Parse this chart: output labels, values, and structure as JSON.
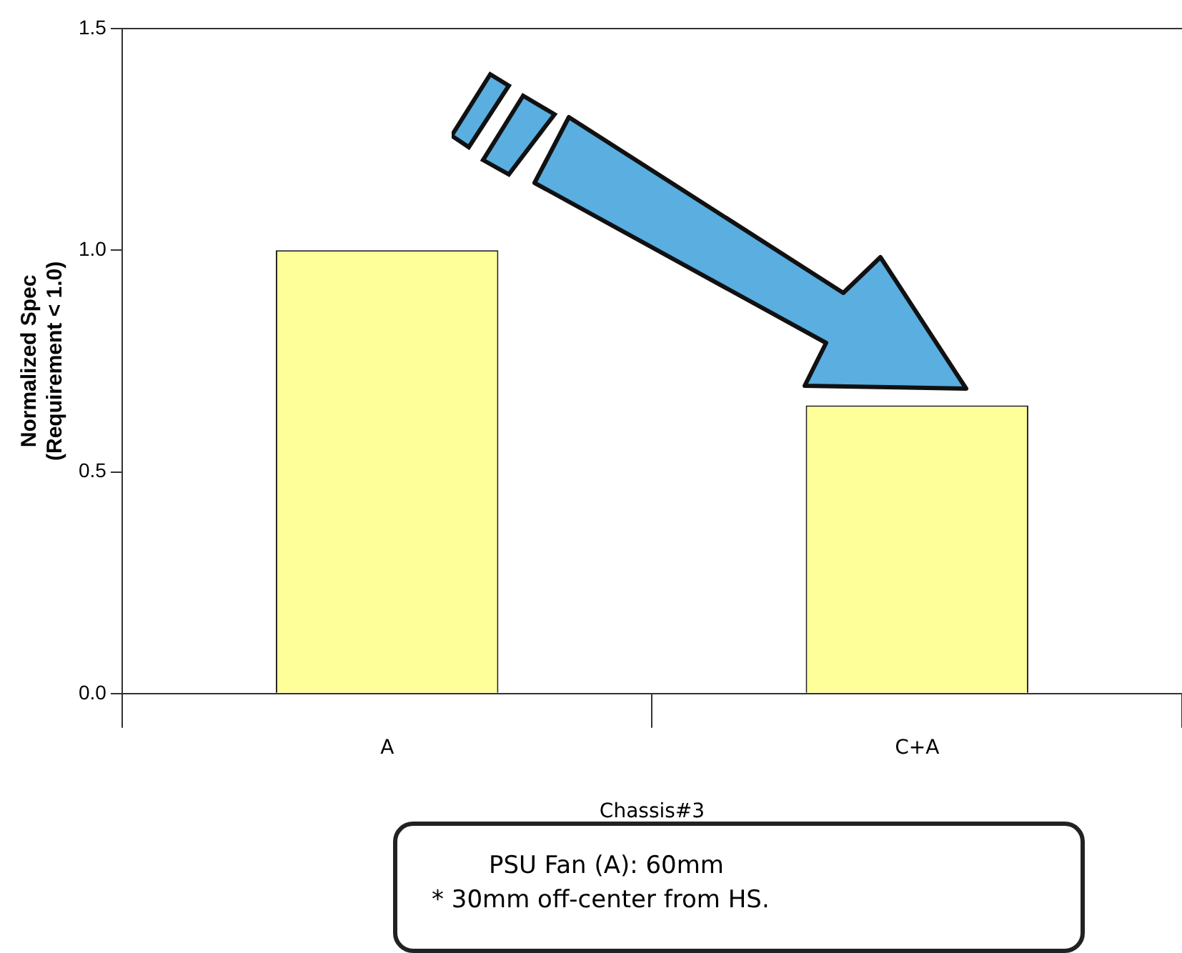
{
  "chart_data": {
    "type": "bar",
    "categories": [
      "A",
      "C+A"
    ],
    "values": [
      1.0,
      0.65
    ],
    "color": "#ffff99",
    "xlabel": "Chassis#3",
    "ylabel": "Normalized Spec\n(Requirement < 1.0)",
    "ylim": [
      0,
      1.5
    ],
    "yticks": [
      {
        "value": 0,
        "label": "0.0"
      },
      {
        "value": 0.5,
        "label": "0.5"
      },
      {
        "value": 1,
        "label": "1.0"
      },
      {
        "value": 1.5,
        "label": "1.5"
      }
    ],
    "grid": false,
    "legend": false,
    "annotations": [
      "PSU Fan (A): 60mm",
      "* 30mm off-center from HS."
    ]
  }
}
